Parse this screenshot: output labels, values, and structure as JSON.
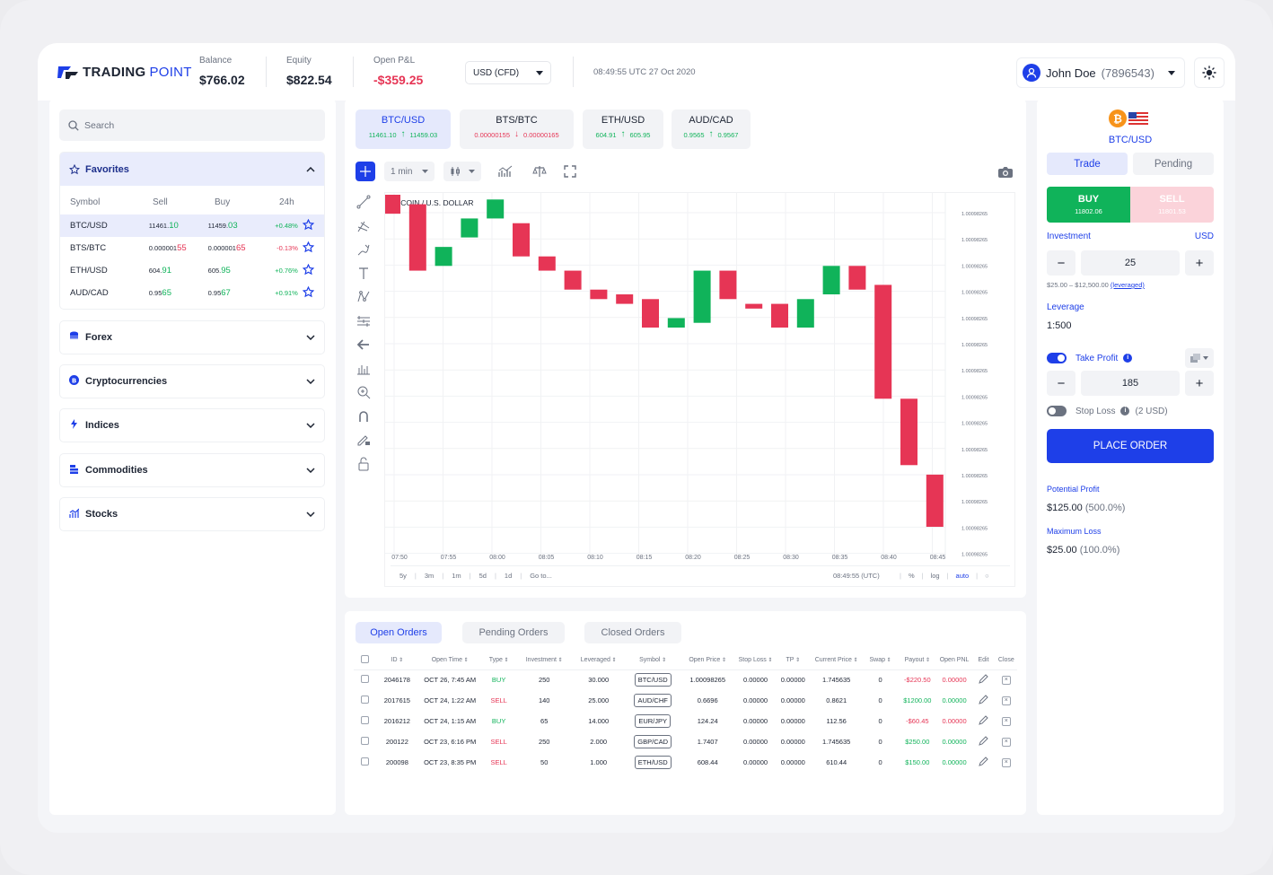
{
  "brand": {
    "bold": "TRADING",
    "light": "POINT"
  },
  "header": {
    "balance_label": "Balance",
    "balance": "$766.02",
    "equity_label": "Equity",
    "equity": "$822.54",
    "pnl_label": "Open P&L",
    "pnl": "-$359.25",
    "currency": "USD (CFD)",
    "clock": "08:49:55 UTC 27 Oct 2020",
    "user_name": "John Doe",
    "user_id": "(7896543)"
  },
  "sidebar": {
    "search_placeholder": "Search",
    "favorites_title": "Favorites",
    "columns": {
      "symbol": "Symbol",
      "sell": "Sell",
      "buy": "Buy",
      "change": "24h"
    },
    "rows": [
      {
        "symbol": "BTC/USD",
        "sell_a": "11461.",
        "sell_b": "10",
        "buy_a": "11459.",
        "buy_b": "03",
        "change": "+0.48%",
        "dir": "up"
      },
      {
        "symbol": "BTS/BTC",
        "sell_a": "0.000001",
        "sell_b": "55",
        "buy_a": "0.000001",
        "buy_b": "65",
        "change": "-0.13%",
        "dir": "down"
      },
      {
        "symbol": "ETH/USD",
        "sell_a": "604.",
        "sell_b": "91",
        "buy_a": "605.",
        "buy_b": "95",
        "change": "+0.76%",
        "dir": "up"
      },
      {
        "symbol": "AUD/CAD",
        "sell_a": "0.95",
        "sell_b": "65",
        "buy_a": "0.95",
        "buy_b": "67",
        "change": "+0.91%",
        "dir": "up"
      }
    ],
    "categories": [
      "Forex",
      "Cryptocurrencies",
      "Indices",
      "Commodities",
      "Stocks"
    ]
  },
  "pair_tabs": [
    {
      "name": "BTC/USD",
      "sell": "11461.10",
      "buy": "11459.03",
      "dir": "up"
    },
    {
      "name": "BTS/BTC",
      "sell": "0.00000155",
      "buy": "0.00000165",
      "dir": "down"
    },
    {
      "name": "ETH/USD",
      "sell": "604.91",
      "buy": "605.95",
      "dir": "up"
    },
    {
      "name": "AUD/CAD",
      "sell": "0.9565",
      "buy": "0.9567",
      "dir": "up"
    }
  ],
  "chart_toolbar": {
    "interval": "1 min"
  },
  "chart_data": {
    "type": "candlestick",
    "title": "BITCOIN / U.S. DOLLAR",
    "x": [
      "07:50",
      "07:55",
      "08:00",
      "08:05",
      "08:10",
      "08:15",
      "08:20",
      "08:25",
      "08:30",
      "08:35",
      "08:40",
      "08:45"
    ],
    "y_tick_label": "1.00098265",
    "y_ticks": 15,
    "ylim": [
      0,
      100
    ],
    "candles": [
      {
        "open": 59,
        "close": 55
      },
      {
        "open": 57,
        "close": 43
      },
      {
        "open": 44,
        "close": 48
      },
      {
        "open": 50,
        "close": 54
      },
      {
        "open": 54,
        "close": 58
      },
      {
        "open": 53,
        "close": 46
      },
      {
        "open": 46,
        "close": 43
      },
      {
        "open": 43,
        "close": 39
      },
      {
        "open": 39,
        "close": 37
      },
      {
        "open": 38,
        "close": 36
      },
      {
        "open": 37,
        "close": 31
      },
      {
        "open": 31,
        "close": 33
      },
      {
        "open": 32,
        "close": 43
      },
      {
        "open": 43,
        "close": 37
      },
      {
        "open": 36,
        "close": 35
      },
      {
        "open": 36,
        "close": 31
      },
      {
        "open": 31,
        "close": 37
      },
      {
        "open": 38,
        "close": 44
      },
      {
        "open": 44,
        "close": 39
      },
      {
        "open": 40,
        "close": 16
      },
      {
        "open": 16,
        "close": 2
      },
      {
        "open": 0,
        "close": -11
      }
    ],
    "bottom_bar": {
      "ranges": [
        "5y",
        "3m",
        "1m",
        "5d",
        "1d",
        "Go to..."
      ],
      "time": "08:49:55 (UTC)",
      "options": [
        "%",
        "log",
        "auto"
      ]
    }
  },
  "orders": {
    "tabs": [
      "Open Orders",
      "Pending Orders",
      "Closed Orders"
    ],
    "columns": [
      "ID",
      "Open Time",
      "Type",
      "Investment",
      "Leveraged",
      "Symbol",
      "Open Price",
      "Stop Loss",
      "TP",
      "Current Price",
      "Swap",
      "Payout",
      "Open PNL",
      "Edit",
      "Close"
    ],
    "rows": [
      {
        "id": "2046178",
        "time": "OCT 26, 7:45 AM",
        "type": "BUY",
        "investment": "250",
        "leveraged": "30.000",
        "symbol": "BTC/USD",
        "open_price": "1.00098265",
        "stop_loss": "0.00000",
        "tp": "0.00000",
        "current": "1.745635",
        "swap": "0",
        "payout": "-$220.50",
        "pnl": "0.00000",
        "pay_dir": "down"
      },
      {
        "id": "2017615",
        "time": "OCT 24, 1:22 AM",
        "type": "SELL",
        "investment": "140",
        "leveraged": "25.000",
        "symbol": "AUD/CHF",
        "open_price": "0.6696",
        "stop_loss": "0.00000",
        "tp": "0.00000",
        "current": "0.8621",
        "swap": "0",
        "payout": "$1200.00",
        "pnl": "0.00000",
        "pay_dir": "up"
      },
      {
        "id": "2016212",
        "time": "OCT 24, 1:15 AM",
        "type": "BUY",
        "investment": "65",
        "leveraged": "14.000",
        "symbol": "EUR/JPY",
        "open_price": "124.24",
        "stop_loss": "0.00000",
        "tp": "0.00000",
        "current": "112.56",
        "swap": "0",
        "payout": "-$60.45",
        "pnl": "0.00000",
        "pay_dir": "down"
      },
      {
        "id": "200122",
        "time": "OCT 23, 6:16 PM",
        "type": "SELL",
        "investment": "250",
        "leveraged": "2.000",
        "symbol": "GBP/CAD",
        "open_price": "1.7407",
        "stop_loss": "0.00000",
        "tp": "0.00000",
        "current": "1.745635",
        "swap": "0",
        "payout": "$250.00",
        "pnl": "0.00000",
        "pay_dir": "up"
      },
      {
        "id": "200098",
        "time": "OCT 23, 8:35 PM",
        "type": "SELL",
        "investment": "50",
        "leveraged": "1.000",
        "symbol": "ETH/USD",
        "open_price": "608.44",
        "stop_loss": "0.00000",
        "tp": "0.00000",
        "current": "610.44",
        "swap": "0",
        "payout": "$150.00",
        "pnl": "0.00000",
        "pay_dir": "up"
      }
    ]
  },
  "trade": {
    "symbol": "BTC/USD",
    "tab_trade": "Trade",
    "tab_pending": "Pending",
    "buy_label": "BUY",
    "buy_price": "11802.06",
    "sell_label": "SELL",
    "sell_price": "11801.53",
    "investment_label": "Investment",
    "investment_currency": "USD",
    "investment_value": "25",
    "range_text": "$25.00 – $12,500.00",
    "range_link": "(leveraged)",
    "leverage_label": "Leverage",
    "leverage_value": "1:500",
    "take_profit_label": "Take Profit",
    "take_profit_value": "185",
    "stop_loss_label": "Stop Loss",
    "stop_loss_note": "(2 USD)",
    "place_order": "PLACE ORDER",
    "potential_label": "Potential Profit",
    "potential_value": "$125.00",
    "potential_pct": "(500.0%)",
    "max_loss_label": "Maximum Loss",
    "max_loss_value": "$25.00",
    "max_loss_pct": "(100.0%)"
  },
  "colors": {
    "accent": "#1e3fe8",
    "up": "#10b35a",
    "down": "#e63555",
    "buy": "#10b35a",
    "sell": "#fbd3da"
  }
}
